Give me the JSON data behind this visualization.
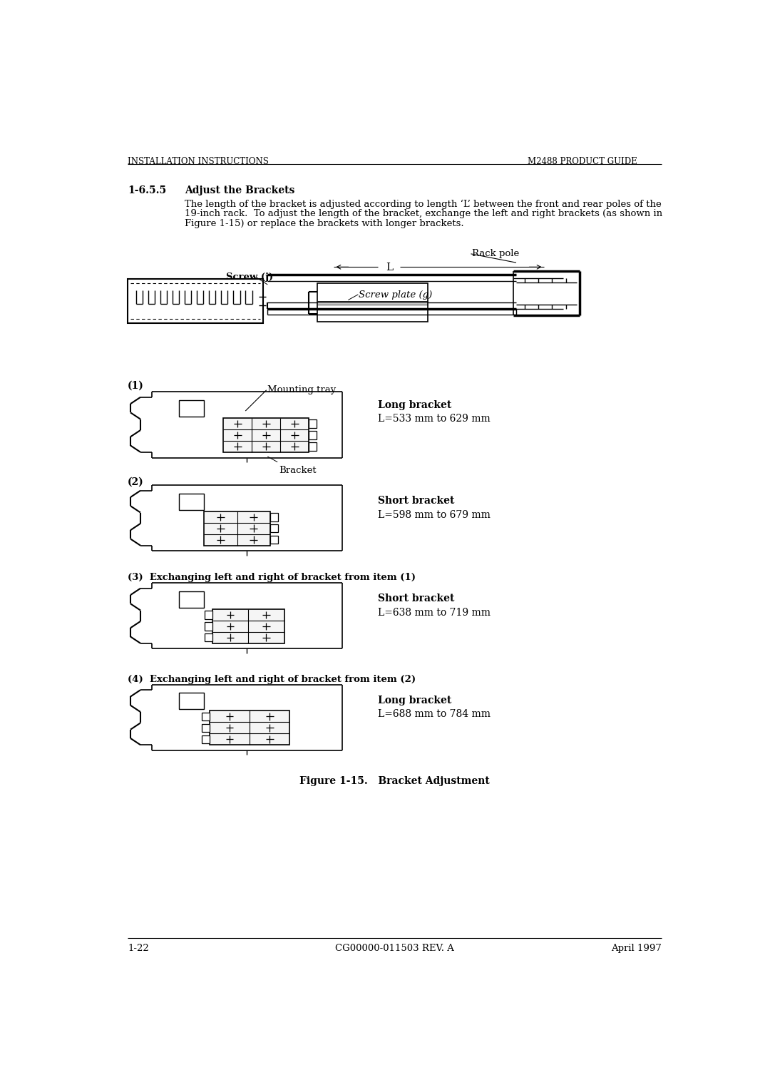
{
  "header_left": "INSTALLATION INSTRUCTIONS",
  "header_right": "M2488 PRODUCT GUIDE",
  "section_num": "1-6.5.5",
  "section_title": "Adjust the Brackets",
  "body_text_lines": [
    "The length of the bracket is adjusted according to length ‘L’ between the front and rear poles of the",
    "19-inch rack.  To adjust the length of the bracket, exchange the left and right brackets (as shown in",
    "Figure 1-15) or replace the brackets with longer brackets."
  ],
  "figure_caption": "Figure 1-15.   Bracket Adjustment",
  "footer_left": "1-22",
  "footer_center": "CG00000-011503 REV. A",
  "footer_right": "April 1997",
  "label3": "(3)  Exchanging left and right of bracket from item (1)",
  "label4": "(4)  Exchanging left and right of bracket from item (2)",
  "item1_type": "Long bracket",
  "item1_dims": "L=533 mm to 629 mm",
  "item2_type": "Short bracket",
  "item2_dims": "L=598 mm to 679 mm",
  "item3_type": "Short bracket",
  "item3_dims": "L=638 mm to 719 mm",
  "item4_type": "Long bracket",
  "item4_dims": "L=688 mm to 784 mm",
  "bg_color": "#ffffff",
  "text_color": "#000000"
}
